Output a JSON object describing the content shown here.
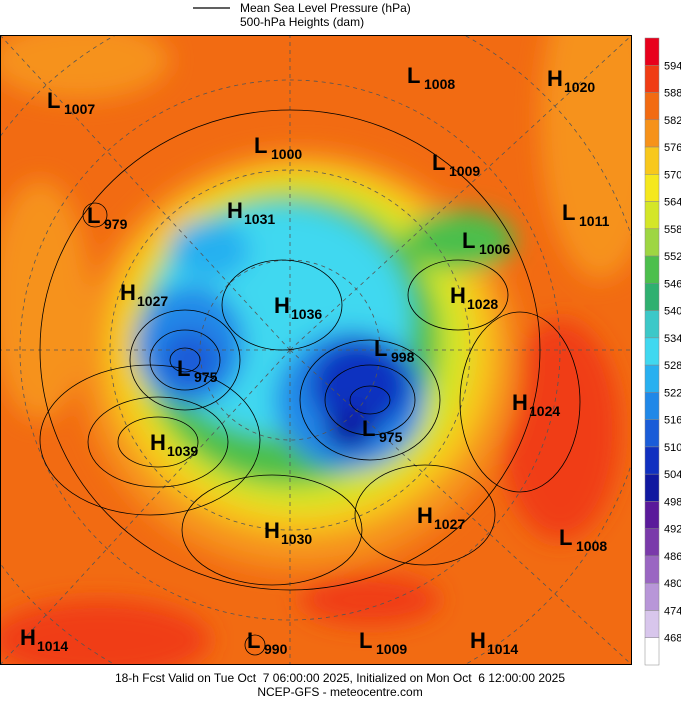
{
  "header": {
    "line_label": "Mean Sea Level Pressure (hPa)",
    "fill_label": "500-hPa Heights (dam)"
  },
  "colorbar": {
    "ticks": [
      594,
      588,
      582,
      576,
      570,
      564,
      558,
      552,
      546,
      540,
      534,
      528,
      522,
      516,
      510,
      504,
      498,
      492,
      486,
      480,
      474,
      468
    ],
    "colors": [
      "#e8001c",
      "#f03c14",
      "#f26b12",
      "#f6921a",
      "#f8c81c",
      "#f5e81e",
      "#d4e628",
      "#9ed642",
      "#4cbf4c",
      "#2fb070",
      "#3cc8c8",
      "#40d8f0",
      "#28b0f0",
      "#2088e8",
      "#1a5cd8",
      "#1030c0",
      "#1018a0",
      "#5a1a9a",
      "#7a3aaa",
      "#9a66c2",
      "#b896d8",
      "#d8c6ec",
      "#ffffff"
    ]
  },
  "centers": [
    {
      "type": "L",
      "value": 1007
    },
    {
      "type": "L",
      "value": 1008
    },
    {
      "type": "H",
      "value": 1020
    },
    {
      "type": "L",
      "value": 1000
    },
    {
      "type": "L",
      "value": 1009
    },
    {
      "type": "L",
      "value": 979
    },
    {
      "type": "H",
      "value": 1031
    },
    {
      "type": "L",
      "value": 1011
    },
    {
      "type": "L",
      "value": 1006
    },
    {
      "type": "H",
      "value": 1027
    },
    {
      "type": "H",
      "value": 1036
    },
    {
      "type": "H",
      "value": 1028
    },
    {
      "type": "L",
      "value": 998
    },
    {
      "type": "L",
      "value": 975
    },
    {
      "type": "H",
      "value": 1024
    },
    {
      "type": "L",
      "value": 975
    },
    {
      "type": "H",
      "value": 1039
    },
    {
      "type": "H",
      "value": 1027
    },
    {
      "type": "H",
      "value": 1030
    },
    {
      "type": "L",
      "value": 1008
    },
    {
      "type": "H",
      "value": 1014
    },
    {
      "type": "L",
      "value": 990
    },
    {
      "type": "L",
      "value": 1009
    },
    {
      "type": "H",
      "value": 1014
    }
  ],
  "footer": {
    "line1": "18-h Fcst Valid on Tue Oct  7 06:00:00 2025, Initialized on Mon Oct  6 12:00:00 2025",
    "line2": "NCEP-GFS - meteocentre.com"
  }
}
